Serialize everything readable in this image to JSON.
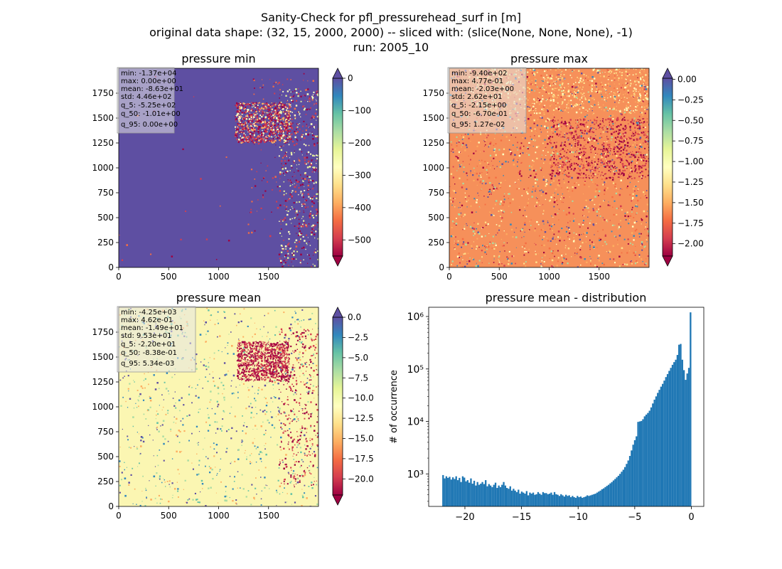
{
  "figure": {
    "suptitle": [
      "Sanity-Check for pfl_pressurehead_surf in [m]",
      "original data shape: (32, 15, 2000, 2000) -- sliced with: (slice(None, None, None), -1)",
      "run: 2005_10"
    ]
  },
  "chart_data": [
    {
      "type": "heatmap",
      "title": "pressure min",
      "xlim": [
        0,
        2000
      ],
      "ylim": [
        0,
        2000
      ],
      "x_ticks": [
        0,
        500,
        1000,
        1500
      ],
      "y_ticks": [
        0,
        250,
        500,
        750,
        1000,
        1250,
        1500,
        1750
      ],
      "colormap": "Spectral",
      "colorbar": {
        "range": [
          -550,
          0
        ],
        "ticks": [
          0,
          -100,
          -200,
          -300,
          -400,
          -500
        ],
        "tick_labels": [
          "0",
          "−100",
          "−200",
          "−300",
          "−400",
          "−500"
        ],
        "extend": "both"
      },
      "stats": [
        "min: -1.37e+04",
        "max: 0.00e+00",
        "mean: -8.63e+01",
        "std: 4.46e+02",
        "q_5: -5.25e+02",
        "q_50: -1.01e+00",
        "q_95: 0.00e+00"
      ]
    },
    {
      "type": "heatmap",
      "title": "pressure max",
      "xlim": [
        0,
        2000
      ],
      "ylim": [
        0,
        2000
      ],
      "x_ticks": [
        0,
        500,
        1000,
        1500
      ],
      "y_ticks": [
        0,
        250,
        500,
        750,
        1000,
        1250,
        1500,
        1750
      ],
      "colormap": "Spectral",
      "colorbar": {
        "range": [
          -2.15,
          0.0127
        ],
        "ticks": [
          0.0,
          -0.25,
          -0.5,
          -0.75,
          -1.0,
          -1.25,
          -1.5,
          -1.75,
          -2.0
        ],
        "tick_labels": [
          "0.00",
          "−0.25",
          "−0.50",
          "−0.75",
          "−1.00",
          "−1.25",
          "−1.50",
          "−1.75",
          "−2.00"
        ],
        "extend": "both"
      },
      "stats": [
        "min: -9.40e+02",
        "max: 4.77e-01",
        "mean: -2.03e+00",
        "std: 2.62e+01",
        "q_5: -2.15e+00",
        "q_50: -6.70e-01",
        "q_95: 1.27e-02"
      ]
    },
    {
      "type": "heatmap",
      "title": "pressure mean",
      "xlim": [
        0,
        2000
      ],
      "ylim": [
        0,
        2000
      ],
      "x_ticks": [
        0,
        500,
        1000,
        1500
      ],
      "y_ticks": [
        0,
        250,
        500,
        750,
        1000,
        1250,
        1500,
        1750
      ],
      "colormap": "Spectral",
      "colorbar": {
        "range": [
          -22.0,
          0.00534
        ],
        "ticks": [
          0.0,
          -2.5,
          -5.0,
          -7.5,
          -10.0,
          -12.5,
          -15.0,
          -17.5,
          -20.0
        ],
        "tick_labels": [
          "0.0",
          "−2.5",
          "−5.0",
          "−7.5",
          "−10.0",
          "−12.5",
          "−15.0",
          "−17.5",
          "−20.0"
        ],
        "extend": "both"
      },
      "stats": [
        "min: -4.25e+03",
        "max: 4.62e-01",
        "mean: -1.49e+01",
        "std: 9.53e+01",
        "q_5: -2.20e+01",
        "q_50: -8.38e-01",
        "q_95: 5.34e-03"
      ]
    },
    {
      "type": "bar",
      "title": "pressure mean - distribution",
      "xlabel": "",
      "ylabel": "# of occurrence",
      "xlim": [
        -23.2,
        1.1
      ],
      "ylim": [
        240,
        1500000
      ],
      "yscale": "log",
      "x_ticks": [
        -20,
        -15,
        -10,
        -5,
        0
      ],
      "x_tick_labels": [
        "−20",
        "−15",
        "−10",
        "−5",
        "0"
      ],
      "y_ticks": [
        1000,
        10000,
        100000,
        1000000
      ],
      "y_tick_labels": [
        "10³",
        "10⁴",
        "10⁵",
        "10⁶"
      ],
      "color": "#1f77b4",
      "bins": {
        "start": -22.0,
        "end": 0.0
      },
      "values": [
        950,
        820,
        900,
        840,
        880,
        780,
        860,
        800,
        900,
        760,
        840,
        700,
        900,
        850,
        720,
        760,
        680,
        820,
        650,
        740,
        600,
        700,
        620,
        650,
        700,
        640,
        760,
        580,
        640,
        600,
        560,
        620,
        680,
        540,
        600,
        560,
        620,
        700,
        600,
        540,
        520,
        580,
        480,
        520,
        480,
        450,
        500,
        420,
        460,
        440,
        420,
        470,
        390,
        440,
        420,
        440,
        400,
        410,
        450,
        420,
        400,
        450,
        430,
        430,
        410,
        420,
        440,
        400,
        450,
        410,
        400,
        380,
        410,
        390,
        370,
        400,
        380,
        390,
        360,
        380,
        360,
        350,
        380,
        360,
        370,
        350,
        360,
        370,
        390,
        380,
        390,
        400,
        410,
        420,
        440,
        460,
        480,
        510,
        530,
        560,
        590,
        620,
        660,
        700,
        750,
        800,
        860,
        920,
        1000,
        1100,
        1200,
        1350,
        1550,
        1800,
        2200,
        2800,
        3600,
        4400,
        5200,
        9800,
        10000,
        10200,
        11000,
        12500,
        13500,
        14500,
        16000,
        18500,
        22000,
        26000,
        30000,
        35000,
        40000,
        46000,
        52000,
        60000,
        70000,
        80000,
        92000,
        105000,
        120000,
        135000,
        150000,
        185000,
        290000,
        300000,
        150000,
        95000,
        62000,
        82000,
        105000,
        1200000
      ]
    }
  ]
}
